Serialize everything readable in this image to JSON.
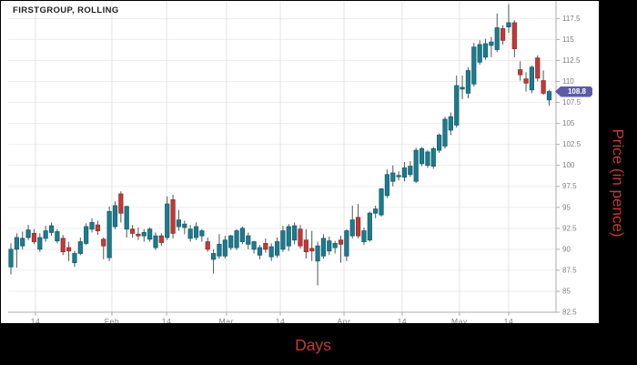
{
  "chart": {
    "title": "FIRSTGROUP, ROLLING",
    "xlabel": "Days",
    "ylabel": "Price (in pence)",
    "last_price_label": "108.8"
  },
  "colors": {
    "up_fill": "#1e7b8c",
    "up_border": "#145f6e",
    "down_fill": "#c13a38",
    "down_border": "#992b28",
    "wick": "#4e565c",
    "grid_h": "#ededed",
    "grid_v": "#e3e3e3",
    "axis": "#adadad",
    "tick_text": "#7e7e7e",
    "badge_bg": "#5e5aa8",
    "axis_title_red": "#c43a2f",
    "panel_bg": "#ffffff",
    "page_bg": "#000000"
  },
  "chart_data": {
    "type": "candlestick",
    "title": "FIRSTGROUP, ROLLING",
    "xlabel": "Days",
    "ylabel": "Price (in pence)",
    "ylim": [
      82.5,
      119.6
    ],
    "grid": true,
    "legend": false,
    "last_close": 108.8,
    "y_ticks": [
      117.5,
      115,
      112.5,
      110,
      107.5,
      105,
      102.5,
      100,
      97.5,
      95,
      92.5,
      90,
      87.5,
      85,
      82.5
    ],
    "x_ticks": [
      {
        "index": 4.25,
        "label": "14"
      },
      {
        "index": 17.45,
        "label": "Feb"
      },
      {
        "index": 26.9,
        "label": "14"
      },
      {
        "index": 37.25,
        "label": "Mar"
      },
      {
        "index": 46.55,
        "label": "14"
      },
      {
        "index": 57.55,
        "label": "Apr"
      },
      {
        "index": 67.6,
        "label": "14"
      },
      {
        "index": 77.5,
        "label": "May"
      },
      {
        "index": 86.0,
        "label": "14"
      }
    ],
    "candles_format": [
      "open",
      "high",
      "low",
      "close"
    ],
    "candles": [
      [
        87.9,
        90.7,
        87.0,
        90.0
      ],
      [
        90.0,
        91.9,
        87.8,
        91.4
      ],
      [
        90.4,
        92.1,
        90.0,
        91.3
      ],
      [
        91.4,
        92.9,
        91.1,
        92.3
      ],
      [
        91.9,
        92.4,
        90.6,
        90.9
      ],
      [
        90.0,
        91.9,
        89.7,
        91.4
      ],
      [
        91.3,
        92.8,
        90.9,
        92.2
      ],
      [
        92.0,
        93.2,
        91.6,
        92.8
      ],
      [
        91.0,
        92.4,
        90.7,
        92.1
      ],
      [
        91.3,
        91.7,
        89.3,
        89.7
      ],
      [
        90.2,
        90.9,
        88.6,
        89.8
      ],
      [
        88.4,
        89.8,
        87.9,
        89.5
      ],
      [
        89.5,
        91.4,
        89.3,
        90.9
      ],
      [
        90.7,
        93.1,
        90.5,
        92.7
      ],
      [
        92.4,
        93.7,
        92.0,
        93.2
      ],
      [
        92.9,
        93.4,
        91.7,
        92.2
      ],
      [
        91.2,
        91.4,
        88.8,
        90.4
      ],
      [
        89.0,
        95.1,
        88.6,
        94.5
      ],
      [
        92.7,
        95.7,
        92.4,
        95.2
      ],
      [
        96.6,
        96.9,
        93.2,
        94.3
      ],
      [
        92.4,
        95.2,
        91.4,
        95.1
      ],
      [
        92.4,
        92.9,
        91.4,
        91.9
      ],
      [
        91.8,
        92.6,
        91.1,
        91.6
      ],
      [
        91.6,
        92.4,
        90.9,
        92.0
      ],
      [
        91.2,
        92.6,
        90.9,
        92.4
      ],
      [
        90.2,
        92.0,
        89.9,
        91.6
      ],
      [
        91.6,
        91.9,
        90.4,
        90.8
      ],
      [
        91.4,
        96.3,
        91.1,
        95.4
      ],
      [
        95.9,
        96.5,
        91.3,
        91.9
      ],
      [
        92.7,
        94.7,
        92.2,
        93.5
      ],
      [
        92.6,
        93.4,
        91.8,
        93.0
      ],
      [
        91.3,
        92.9,
        90.9,
        92.4
      ],
      [
        91.4,
        93.2,
        91.1,
        92.7
      ],
      [
        91.6,
        92.4,
        90.9,
        92.2
      ],
      [
        90.9,
        91.4,
        89.7,
        90.0
      ],
      [
        88.8,
        90.0,
        87.1,
        89.5
      ],
      [
        89.2,
        91.8,
        88.9,
        90.6
      ],
      [
        89.2,
        91.6,
        88.9,
        91.1
      ],
      [
        90.2,
        91.7,
        89.9,
        91.6
      ],
      [
        90.2,
        92.4,
        89.9,
        92.2
      ],
      [
        90.9,
        92.7,
        90.6,
        92.5
      ],
      [
        90.6,
        92.0,
        90.0,
        91.6
      ],
      [
        90.0,
        91.0,
        89.5,
        90.9
      ],
      [
        89.3,
        90.5,
        88.8,
        90.2
      ],
      [
        90.7,
        91.3,
        89.6,
        90.0
      ],
      [
        89.1,
        90.7,
        88.6,
        90.3
      ],
      [
        89.3,
        91.4,
        89.0,
        90.9
      ],
      [
        90.0,
        92.8,
        89.7,
        92.2
      ],
      [
        90.4,
        93.0,
        89.8,
        92.7
      ],
      [
        91.1,
        93.2,
        90.6,
        92.8
      ],
      [
        92.4,
        92.9,
        90.1,
        90.4
      ],
      [
        91.1,
        92.4,
        88.9,
        89.7
      ],
      [
        90.1,
        92.2,
        88.6,
        89.8
      ],
      [
        88.6,
        90.9,
        85.7,
        90.4
      ],
      [
        89.2,
        91.8,
        88.9,
        91.3
      ],
      [
        89.8,
        91.5,
        89.3,
        91.0
      ],
      [
        90.2,
        91.0,
        89.5,
        90.7
      ],
      [
        91.1,
        91.6,
        88.4,
        90.6
      ],
      [
        89.2,
        92.4,
        88.6,
        92.2
      ],
      [
        91.6,
        95.2,
        91.3,
        93.5
      ],
      [
        93.8,
        95.4,
        91.3,
        91.6
      ],
      [
        90.9,
        92.6,
        90.5,
        92.2
      ],
      [
        91.1,
        94.5,
        90.9,
        94.3
      ],
      [
        94.3,
        95.2,
        93.7,
        94.8
      ],
      [
        94.1,
        97.3,
        93.9,
        97.2
      ],
      [
        96.4,
        99.5,
        96.1,
        98.9
      ],
      [
        98.1,
        100.0,
        97.5,
        99.1
      ],
      [
        98.7,
        99.3,
        98.2,
        98.8
      ],
      [
        98.6,
        100.4,
        98.1,
        99.7
      ],
      [
        98.9,
        100.5,
        98.6,
        99.9
      ],
      [
        98.1,
        102.1,
        97.9,
        101.8
      ],
      [
        100.2,
        102.2,
        99.9,
        102.0
      ],
      [
        100.0,
        101.8,
        99.7,
        101.6
      ],
      [
        99.9,
        102.2,
        99.6,
        102.0
      ],
      [
        101.8,
        103.8,
        101.5,
        103.6
      ],
      [
        102.3,
        105.8,
        102.0,
        105.5
      ],
      [
        104.2,
        106.3,
        103.6,
        105.8
      ],
      [
        104.8,
        110.7,
        104.5,
        109.5
      ],
      [
        109.1,
        110.7,
        107.9,
        109.3
      ],
      [
        108.6,
        111.7,
        108.0,
        111.3
      ],
      [
        109.7,
        114.6,
        109.4,
        114.1
      ],
      [
        112.3,
        114.9,
        112.0,
        114.4
      ],
      [
        112.9,
        115.1,
        112.6,
        114.5
      ],
      [
        114.3,
        115.3,
        112.9,
        114.7
      ],
      [
        113.8,
        118.1,
        113.5,
        116.4
      ],
      [
        116.3,
        116.7,
        114.4,
        114.9
      ],
      [
        116.5,
        119.2,
        115.8,
        117.0
      ],
      [
        117.0,
        117.3,
        112.9,
        113.9
      ],
      [
        111.4,
        112.4,
        110.1,
        110.8
      ],
      [
        110.3,
        111.1,
        108.8,
        109.8
      ],
      [
        109.0,
        111.9,
        108.6,
        111.7
      ],
      [
        112.8,
        113.1,
        110.0,
        110.4
      ],
      [
        110.1,
        111.3,
        108.4,
        108.6
      ],
      [
        107.8,
        109.0,
        107.1,
        108.8
      ]
    ]
  }
}
